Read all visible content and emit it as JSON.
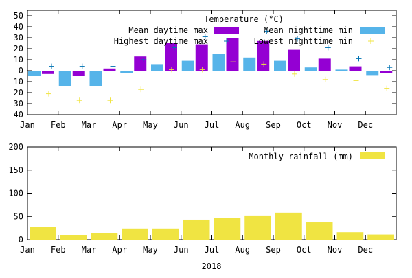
{
  "colors": {
    "mean_max": "#9400d3",
    "mean_min": "#56b4e9",
    "highest_max": "#009e73",
    "lowest_min": "#f0e442",
    "highest_max_marker": "#0072b2",
    "rain": "#f0e442"
  },
  "chart_data": [
    {
      "type": "bar",
      "title": "Temperature (°C)",
      "categories": [
        "Jan",
        "Feb",
        "Mar",
        "Apr",
        "May",
        "Jun",
        "Jul",
        "Aug",
        "Sep",
        "Oct",
        "Nov",
        "Dec"
      ],
      "ylim": [
        -40,
        55
      ],
      "yticks": [
        -40,
        -30,
        -20,
        -10,
        0,
        10,
        20,
        30,
        40,
        50
      ],
      "grid": false,
      "legend_position": "top-right",
      "series": [
        {
          "name": "Mean daytime max",
          "kind": "bar",
          "color_key": "mean_max",
          "values": [
            -3,
            -5,
            2,
            13,
            25,
            24,
            30,
            27,
            19,
            11,
            4,
            -2
          ]
        },
        {
          "name": "Mean nighttime min",
          "kind": "bar",
          "color_key": "mean_min",
          "values": [
            -5,
            -14,
            -14,
            -2,
            6,
            9,
            15,
            12,
            9,
            3,
            1,
            -4
          ]
        },
        {
          "name": "Highest daytime max",
          "kind": "marker",
          "marker": "plus",
          "color_key": "highest_max_marker",
          "values": [
            4,
            4,
            4,
            10,
            21,
            31,
            36,
            36,
            29,
            21,
            11,
            3
          ]
        },
        {
          "name": "Lowest nighttime min",
          "kind": "marker",
          "marker": "plus",
          "color_key": "lowest_min",
          "values": [
            -21,
            -27,
            -27,
            -17,
            1,
            1,
            8,
            6,
            -3,
            -8,
            -9,
            -16
          ]
        }
      ]
    },
    {
      "type": "bar",
      "categories": [
        "Jan",
        "Feb",
        "Mar",
        "Apr",
        "May",
        "Jun",
        "Jul",
        "Aug",
        "Sep",
        "Oct",
        "Nov",
        "Dec"
      ],
      "xlabel": "2018",
      "ylim": [
        0,
        200
      ],
      "yticks": [
        0,
        50,
        100,
        150,
        200
      ],
      "grid": false,
      "legend_position": "top-right",
      "series": [
        {
          "name": "Monthly rainfall (mm)",
          "kind": "bar",
          "color_key": "rain",
          "values": [
            28,
            9,
            14,
            24,
            24,
            43,
            46,
            52,
            58,
            37,
            16,
            11
          ]
        }
      ]
    }
  ]
}
